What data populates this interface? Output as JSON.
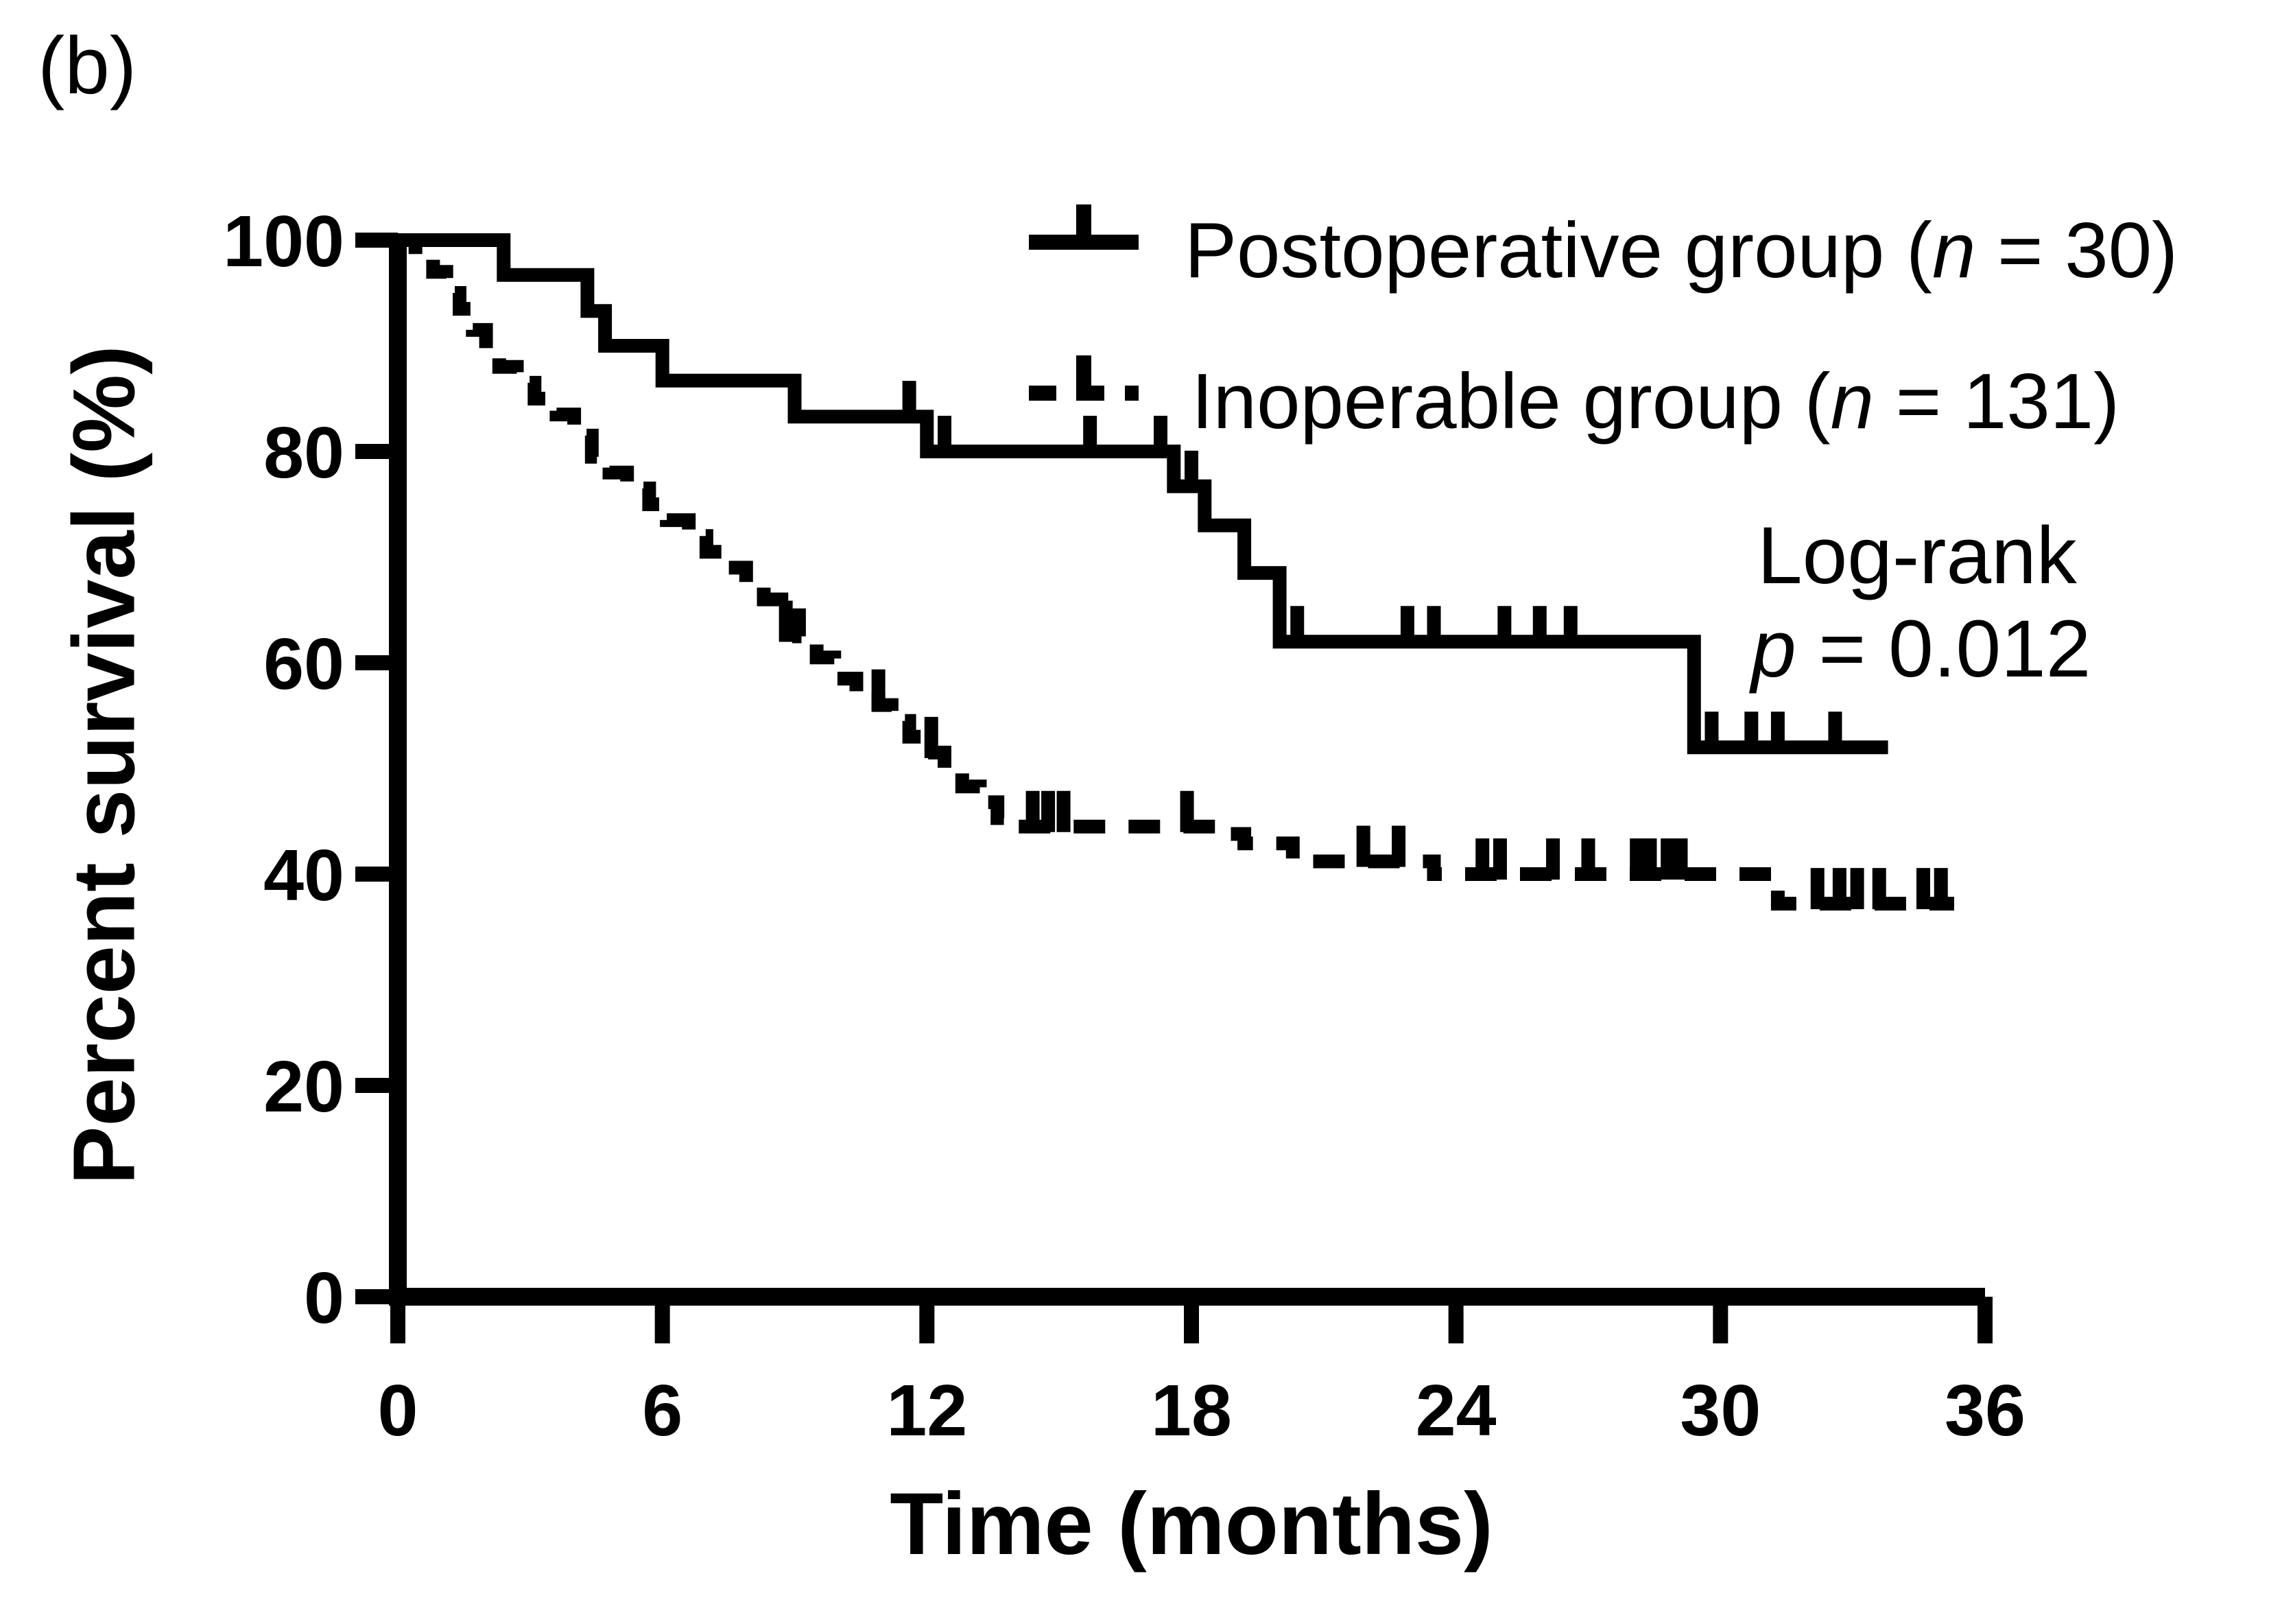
{
  "panel_label": "(b)",
  "colors": {
    "ink": "#000000",
    "background": "#ffffff"
  },
  "axes": {
    "y_title": "Percent survival (%)",
    "x_title": "Time (months)",
    "y_tick_labels": [
      "0",
      "20",
      "40",
      "60",
      "80",
      "100"
    ],
    "x_tick_labels": [
      "0",
      "6",
      "12",
      "18",
      "24",
      "30",
      "36"
    ]
  },
  "legend": {
    "entries": [
      {
        "id": "postoperative",
        "style": "solid",
        "label_prefix": "Postoperative group (",
        "n_symbol": "n",
        "label_suffix": " = 30)"
      },
      {
        "id": "inoperable",
        "style": "dashed",
        "label_prefix": "Inoperable group (",
        "n_symbol": "n",
        "label_suffix": " = 131)"
      }
    ]
  },
  "annotation": {
    "line1": "Log-rank",
    "p_symbol": "p",
    "p_suffix": " = 0.012"
  },
  "chart_data": {
    "type": "line",
    "subtype": "kaplan-meier-step",
    "title": "",
    "xlabel": "Time (months)",
    "ylabel": "Percent survival (%)",
    "xlim": [
      0,
      36
    ],
    "ylim": [
      0,
      100
    ],
    "x_ticks": [
      0,
      6,
      12,
      18,
      24,
      30,
      36
    ],
    "y_ticks": [
      0,
      20,
      40,
      60,
      80,
      100
    ],
    "grid": false,
    "legend_position": "upper right",
    "series": [
      {
        "name": "Postoperative group (n = 30)",
        "line": "solid",
        "steps": [
          [
            0,
            100
          ],
          [
            2.4,
            96.7
          ],
          [
            4.3,
            93.3
          ],
          [
            4.7,
            90
          ],
          [
            6,
            86.7
          ],
          [
            9,
            83.3
          ],
          [
            12,
            80
          ],
          [
            17.6,
            76.7
          ],
          [
            18.3,
            73
          ],
          [
            19.2,
            68.5
          ],
          [
            20,
            62
          ],
          [
            29.4,
            52
          ],
          [
            33.8,
            52
          ]
        ],
        "censors": [
          [
            11.6,
            83.3
          ],
          [
            12.4,
            80
          ],
          [
            15.7,
            80
          ],
          [
            17.3,
            80
          ],
          [
            18.0,
            76.7
          ],
          [
            20.4,
            62
          ],
          [
            22.9,
            62
          ],
          [
            23.5,
            62
          ],
          [
            25.1,
            62
          ],
          [
            25.9,
            62
          ],
          [
            26.6,
            62
          ],
          [
            29.8,
            52
          ],
          [
            30.7,
            52
          ],
          [
            31.3,
            52
          ],
          [
            32.6,
            52
          ]
        ]
      },
      {
        "name": "Inoperable group (n = 131)",
        "line": "dashed",
        "steps": [
          [
            0,
            100
          ],
          [
            0.4,
            98.5
          ],
          [
            0.8,
            97
          ],
          [
            1.1,
            95
          ],
          [
            1.4,
            93.5
          ],
          [
            1.7,
            91.5
          ],
          [
            2.0,
            89.5
          ],
          [
            2.3,
            88
          ],
          [
            2.7,
            86.5
          ],
          [
            3.1,
            85
          ],
          [
            3.6,
            83.5
          ],
          [
            4.0,
            81.5
          ],
          [
            4.4,
            79.5
          ],
          [
            4.8,
            78
          ],
          [
            5.2,
            76.5
          ],
          [
            5.7,
            75
          ],
          [
            6.1,
            73.5
          ],
          [
            6.6,
            72
          ],
          [
            7.0,
            70.5
          ],
          [
            7.4,
            69
          ],
          [
            7.9,
            67.5
          ],
          [
            8.3,
            66
          ],
          [
            8.7,
            64.5
          ],
          [
            9.1,
            62.5
          ],
          [
            9.5,
            60.5
          ],
          [
            9.9,
            58.5
          ],
          [
            10.4,
            57.2
          ],
          [
            10.9,
            56
          ],
          [
            11.2,
            54.5
          ],
          [
            11.6,
            53
          ],
          [
            12.0,
            51.5
          ],
          [
            12.4,
            50
          ],
          [
            12.8,
            48.3
          ],
          [
            13.2,
            46.8
          ],
          [
            13.6,
            45.3
          ],
          [
            14.0,
            44.5
          ],
          [
            18.8,
            43.8
          ],
          [
            19.2,
            42.9
          ],
          [
            20.3,
            41.2
          ],
          [
            23.5,
            40
          ],
          [
            31.3,
            37.2
          ],
          [
            35.3,
            37.2
          ]
        ],
        "censors": [
          [
            8.8,
            62.5
          ],
          [
            10.9,
            56
          ],
          [
            12.1,
            51.5
          ],
          [
            14.4,
            44.5
          ],
          [
            14.75,
            44.5
          ],
          [
            15.1,
            44.5
          ],
          [
            17.9,
            44.5
          ],
          [
            21.9,
            41.2
          ],
          [
            22.7,
            41.2
          ],
          [
            24.6,
            40
          ],
          [
            25.0,
            40
          ],
          [
            26.2,
            40
          ],
          [
            27.0,
            40
          ],
          [
            28.1,
            40
          ],
          [
            28.4,
            40
          ],
          [
            28.8,
            40
          ],
          [
            29.1,
            40
          ],
          [
            32.2,
            37.2
          ],
          [
            32.7,
            37.2
          ],
          [
            33.1,
            37.2
          ],
          [
            33.6,
            37.2
          ],
          [
            34.6,
            37.2
          ],
          [
            35.0,
            37.2
          ]
        ]
      }
    ],
    "annotations": [
      {
        "text": "Log-rank"
      },
      {
        "text": "p = 0.012"
      }
    ]
  }
}
